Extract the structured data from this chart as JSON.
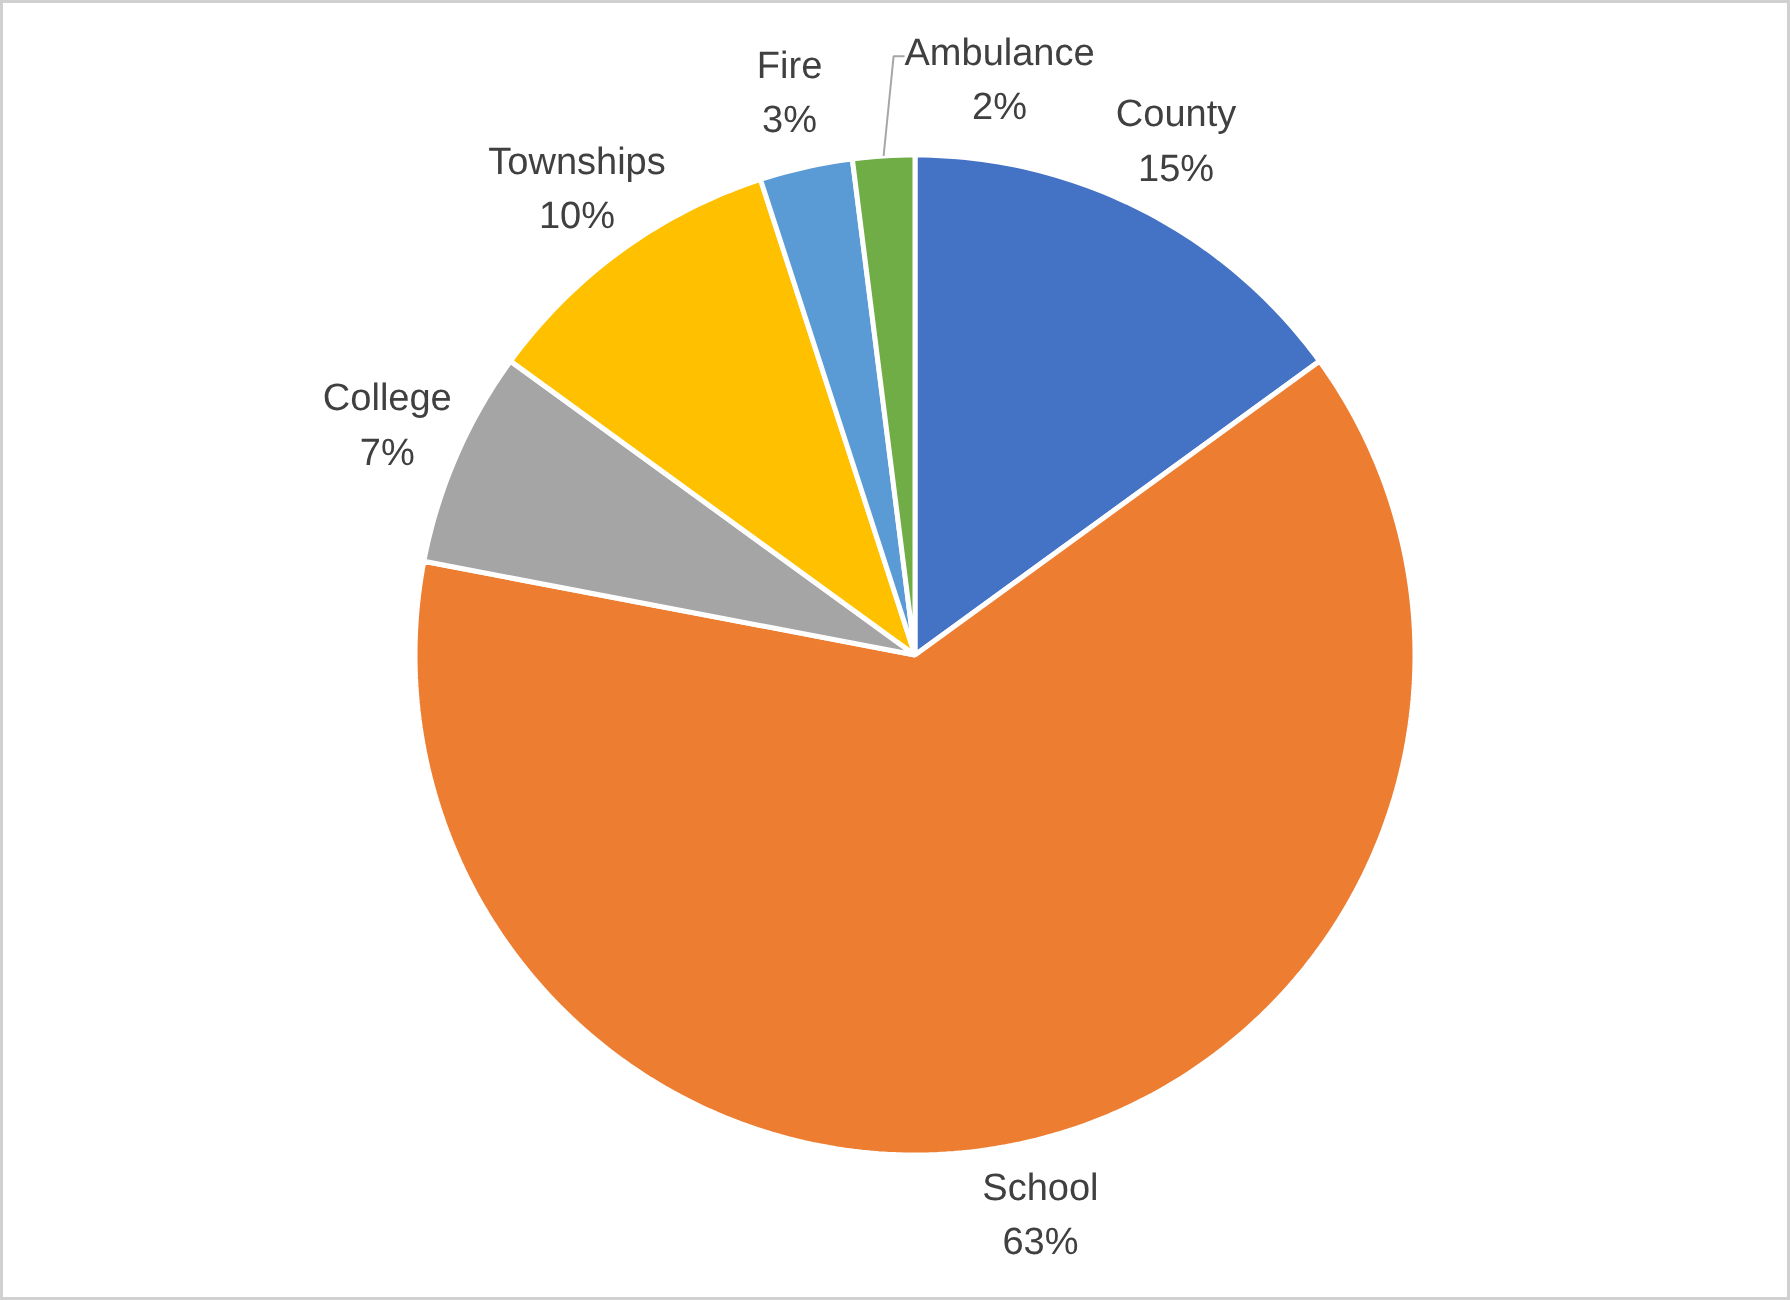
{
  "chart_data": {
    "type": "pie",
    "categories": [
      "County",
      "School",
      "College",
      "Townships",
      "Fire",
      "Ambulance"
    ],
    "values": [
      15,
      63,
      7,
      10,
      3,
      2
    ],
    "value_labels": [
      "15%",
      "63%",
      "7%",
      "10%",
      "3%",
      "2%"
    ],
    "colors": [
      "#4472c4",
      "#ed7d31",
      "#a5a5a5",
      "#ffc000",
      "#5b9bd5",
      "#70ad47"
    ],
    "legend": false
  }
}
